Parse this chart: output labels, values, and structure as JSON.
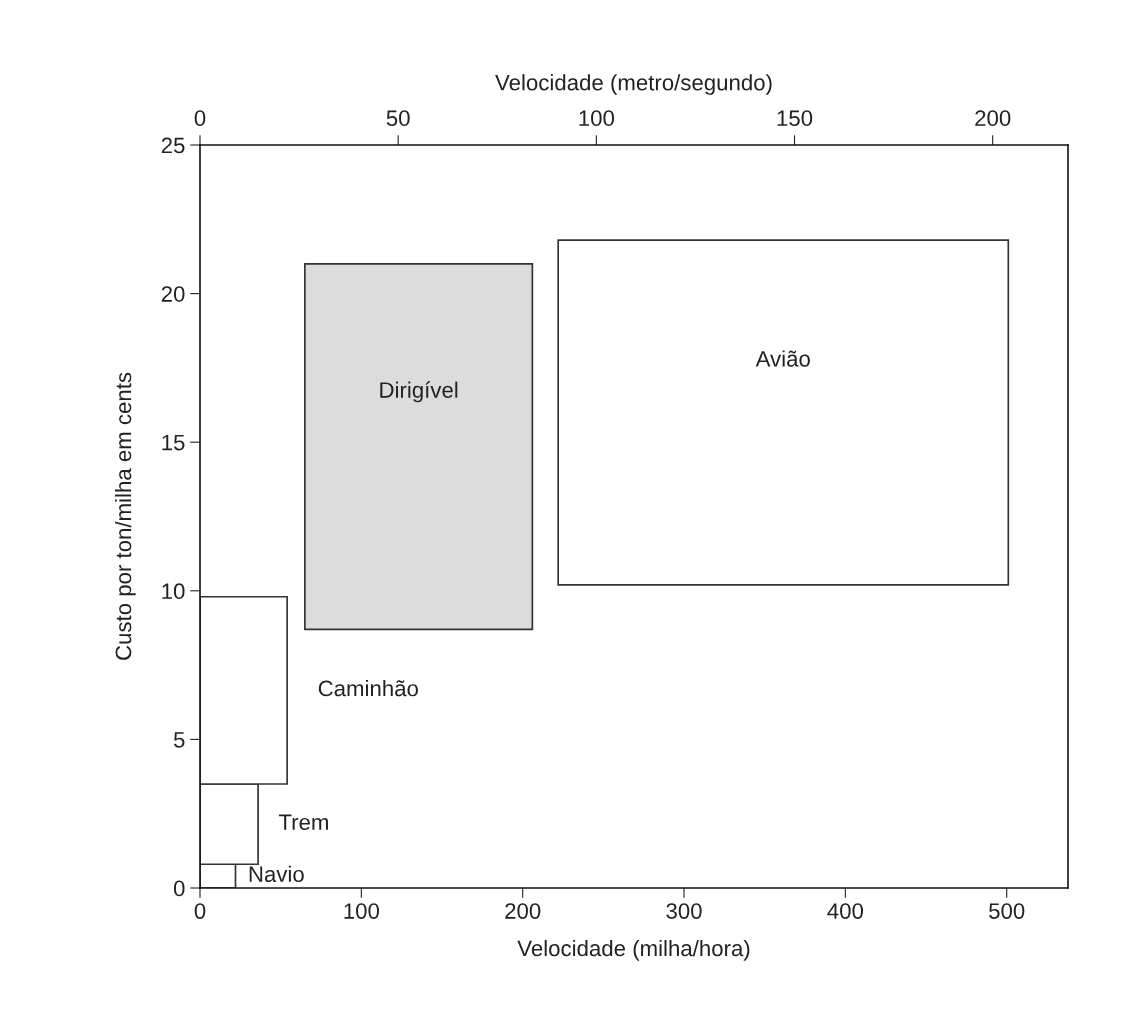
{
  "chart_data": {
    "type": "area",
    "xlabel": "Velocidade (milha/hora)",
    "ylabel": "Custo por ton/milha em cents",
    "x2label": "Velocidade (metro/segundo)",
    "xlim": [
      0,
      538
    ],
    "xticks": [
      0,
      100,
      200,
      300,
      400,
      500
    ],
    "x2lim": [
      0,
      219
    ],
    "x2ticks": [
      0,
      50,
      100,
      150,
      200
    ],
    "ylim": [
      0,
      25
    ],
    "yticks": [
      0,
      5,
      10,
      15,
      20,
      25
    ],
    "grid": false,
    "legend": false,
    "series": [
      {
        "name": "Navio",
        "color": "#ffffff",
        "x": [
          0,
          22,
          22,
          0
        ],
        "values": [
          0,
          0,
          0.8,
          0.8
        ]
      },
      {
        "name": "Trem",
        "color": "#ffffff",
        "x": [
          0,
          36,
          36,
          0
        ],
        "values": [
          0.8,
          0.8,
          3.5,
          3.5
        ]
      },
      {
        "name": "Caminhão",
        "color": "#ffffff",
        "x": [
          0,
          54,
          54,
          0
        ],
        "values": [
          3.5,
          3.5,
          9.8,
          9.8
        ]
      },
      {
        "name": "Dirigível",
        "color": "#dcdcdc",
        "x": [
          65,
          206,
          206,
          65
        ],
        "values": [
          8.7,
          8.7,
          21,
          21
        ]
      },
      {
        "name": "Avião",
        "color": "#ffffff",
        "x": [
          222,
          501,
          501,
          222
        ],
        "values": [
          10.2,
          10.2,
          21.8,
          21.8
        ]
      }
    ]
  }
}
